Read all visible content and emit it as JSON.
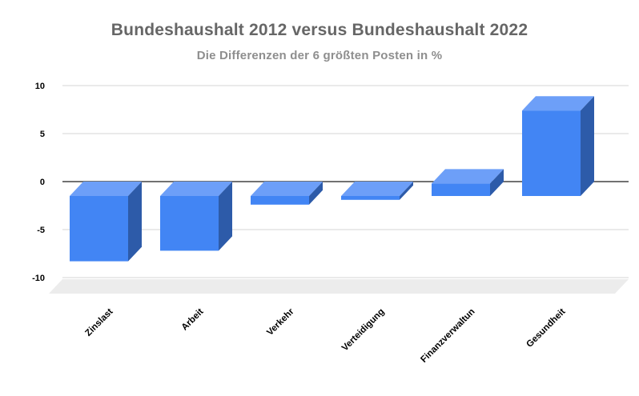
{
  "chart_data": {
    "type": "bar",
    "style": "3d-column",
    "title": "Bundeshaushalt 2012 versus Bundeshaushalt 2022",
    "subtitle": "Die Differenzen der 6 größten Posten in %",
    "categories": [
      "Zinslast",
      "Arbeit",
      "Verkehr",
      "Verteidigung",
      "Finanzverwaltun",
      "Gesundheit"
    ],
    "values": [
      -6.8,
      -5.7,
      -0.9,
      -0.4,
      1.3,
      8.9
    ],
    "xlabel": "",
    "ylabel": "",
    "ylim": [
      -10,
      10
    ],
    "y_ticks": [
      10,
      5,
      0,
      -5,
      -10
    ],
    "grid": true,
    "legend": "none",
    "colors": {
      "bar_front": "#4285f4",
      "bar_top": "#6d9ff8",
      "bar_side": "#2d5ba9",
      "gridline": "#d6d6d6",
      "zero_line": "#424242",
      "floor": "#ececec",
      "title": "#666666",
      "subtitle": "#8e8e8e",
      "axis_label": "#000000"
    }
  }
}
